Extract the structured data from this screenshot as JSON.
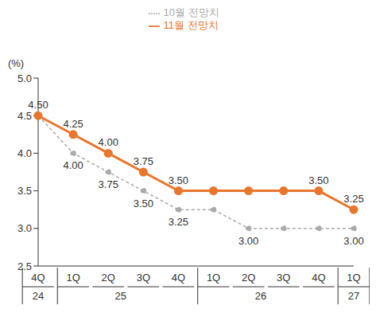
{
  "chart_data": {
    "type": "line",
    "ylabel": "(%)",
    "categories": [
      "4Q",
      "1Q",
      "2Q",
      "3Q",
      "4Q",
      "1Q",
      "2Q",
      "3Q",
      "4Q",
      "1Q"
    ],
    "category_groups": [
      {
        "label": "24",
        "count": 1
      },
      {
        "label": "25",
        "count": 4
      },
      {
        "label": "26",
        "count": 4
      },
      {
        "label": "27",
        "count": 1
      }
    ],
    "series": [
      {
        "name": "10월 전망치",
        "color": "#AAAAAA",
        "line_style": "dashed",
        "marker": "circle",
        "values": [
          4.5,
          4.0,
          3.75,
          3.5,
          3.25,
          3.25,
          3.0,
          3.0,
          3.0,
          3.0
        ],
        "value_labels": [
          null,
          "4.00",
          "3.75",
          "3.50",
          "3.25",
          null,
          "3.00",
          null,
          null,
          "3.00"
        ]
      },
      {
        "name": "11월 전망치",
        "color": "#E8762C",
        "line_style": "solid",
        "marker": "circle",
        "values": [
          4.5,
          4.25,
          4.0,
          3.75,
          3.5,
          3.5,
          3.5,
          3.5,
          3.5,
          3.25
        ],
        "value_labels": [
          "4.50",
          "4.25",
          "4.00",
          "3.75",
          "3.50",
          null,
          null,
          null,
          "3.50",
          "3.25"
        ]
      }
    ],
    "ylim": [
      2.5,
      5.0
    ],
    "yticks": [
      {
        "value": 2.5,
        "label": "2.5"
      },
      {
        "value": 3,
        "label": "3.0"
      },
      {
        "value": 3.5,
        "label": "3.5"
      },
      {
        "value": 4,
        "label": "4.0"
      },
      {
        "value": 4.5,
        "label": "4.5"
      },
      {
        "value": 5,
        "label": "5.0"
      }
    ],
    "grid": false,
    "legend": "top",
    "data_labels": true
  }
}
